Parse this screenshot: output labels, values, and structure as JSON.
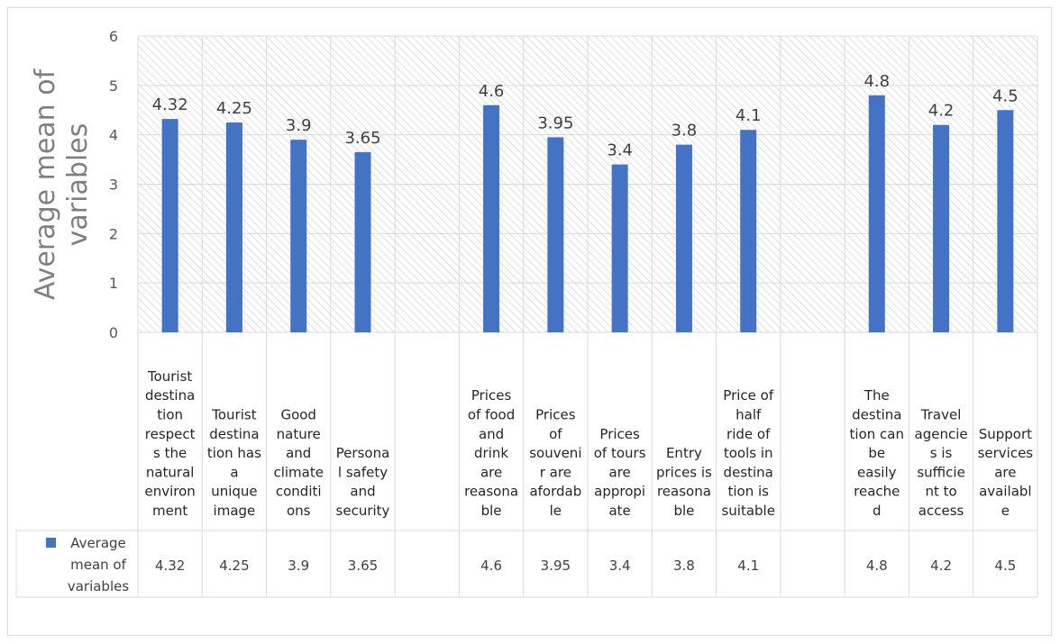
{
  "chart_data": {
    "type": "bar",
    "title": "",
    "ylabel": "Average mean of variables",
    "ylim": [
      0,
      6
    ],
    "yticks": [
      0,
      1,
      2,
      3,
      4,
      5,
      6
    ],
    "grid": true,
    "legend_position": "bottom-left (data table)",
    "bar_color": "#4472c4",
    "plot_fill": "hatched light gray",
    "categories": [
      "Tourist destination respects the natural environment",
      "Tourist destination has a unique image",
      "Good nature and climate conditions",
      "Personal safety and security",
      "",
      "Prices of food and drink are reasonable",
      "Prices of souvenir are afordable",
      "Prices of tours are appropiate",
      "Entry prices is reasonable",
      "Price of half ride of tools in destination is suitable",
      "",
      "The destination can be easily reached",
      "Travel agencies is sufficient to access",
      "Support services are available"
    ],
    "category_lines": [
      [
        "Tourist",
        "destina",
        "tion",
        "respect",
        "s the",
        "natural",
        "environ",
        "ment"
      ],
      [
        "Tourist",
        "destina",
        "tion has",
        "a",
        "unique",
        "image"
      ],
      [
        "Good",
        "nature",
        "and",
        "climate",
        "conditi",
        "ons"
      ],
      [
        "Persona",
        "l safety",
        "and",
        "security"
      ],
      [],
      [
        "Prices",
        "of food",
        "and",
        "drink",
        "are",
        "reasona",
        "ble"
      ],
      [
        "Prices",
        "of",
        "souveni",
        "r are",
        "afordab",
        "le"
      ],
      [
        "Prices",
        "of tours",
        "are",
        "appropi",
        "ate"
      ],
      [
        "Entry",
        "prices is",
        "reasona",
        "ble"
      ],
      [
        "Price of",
        "half",
        "ride of",
        "tools in",
        "destina",
        "tion is",
        "suitable"
      ],
      [],
      [
        "The",
        "destina",
        "tion can",
        "be",
        "easily",
        "reache",
        "d"
      ],
      [
        "Travel",
        "agencie",
        "s is",
        "sufficie",
        "nt to",
        "access"
      ],
      [
        "Support",
        "services",
        "are",
        "availabl",
        "e"
      ]
    ],
    "series": [
      {
        "name": "Average mean of variables",
        "values": [
          4.32,
          4.25,
          3.9,
          3.65,
          null,
          4.6,
          3.95,
          3.4,
          3.8,
          4.1,
          null,
          4.8,
          4.2,
          4.5
        ],
        "labels": [
          "4.32",
          "4.25",
          "3.9",
          "3.65",
          "",
          "4.6",
          "3.95",
          "3.4",
          "3.8",
          "4.1",
          "",
          "4.8",
          "4.2",
          "4.5"
        ]
      }
    ],
    "legend_lines": [
      "Average",
      "mean of",
      "variables"
    ]
  }
}
